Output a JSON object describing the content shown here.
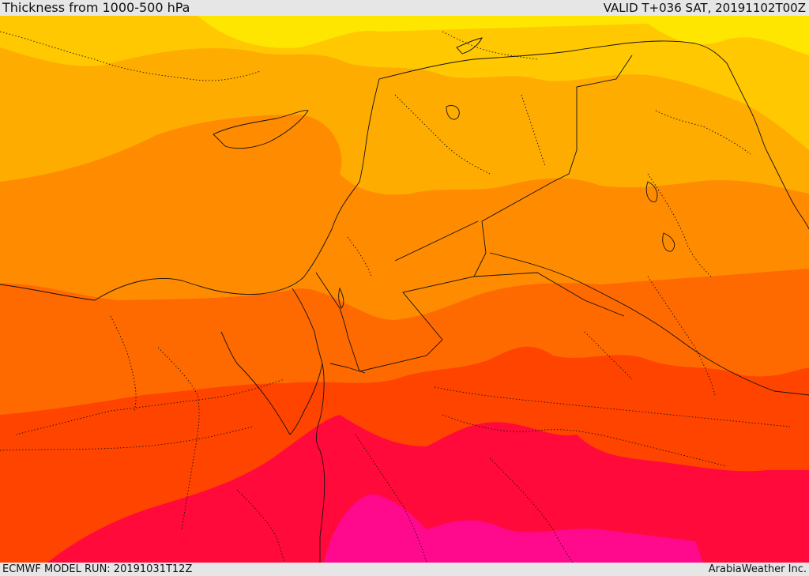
{
  "header": {
    "title": "Thickness from 1000-500 hPa",
    "valid": "VALID T+036 SAT, 20191102T00Z"
  },
  "footer": {
    "model_run": "ECMWF MODEL RUN: 20191031T12Z",
    "credit": "ArabiaWeather Inc."
  },
  "colors": {
    "band1": "#ffe600",
    "band2": "#ffc800",
    "band3": "#ffac00",
    "band4": "#ff8c00",
    "band5": "#ff6a00",
    "band6": "#ff4400",
    "band7": "#ff0a3a",
    "band8": "#ff0a8c",
    "border": "#111111"
  }
}
